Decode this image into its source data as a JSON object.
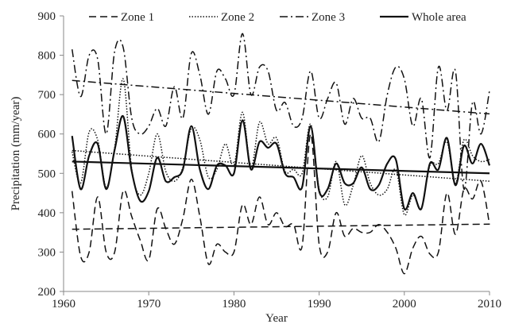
{
  "chart_data": {
    "type": "line",
    "xlabel": "Year",
    "ylabel": "Precipitation  (mm/year)",
    "xlim": [
      1960,
      2010
    ],
    "ylim": [
      200,
      900
    ],
    "xticks": [
      1960,
      1970,
      1980,
      1990,
      2000,
      2010
    ],
    "yticks": [
      200,
      300,
      400,
      500,
      600,
      700,
      800,
      900
    ],
    "legend_position": "top",
    "x": [
      1961,
      1962,
      1963,
      1964,
      1965,
      1966,
      1967,
      1968,
      1969,
      1970,
      1971,
      1972,
      1973,
      1974,
      1975,
      1976,
      1977,
      1978,
      1979,
      1980,
      1981,
      1982,
      1983,
      1984,
      1985,
      1986,
      1987,
      1988,
      1989,
      1990,
      1991,
      1992,
      1993,
      1994,
      1995,
      1996,
      1997,
      1998,
      1999,
      2000,
      2001,
      2002,
      2003,
      2004,
      2005,
      2006,
      2007,
      2008,
      2009,
      2010
    ],
    "series": [
      {
        "name": "Zone 1",
        "dash": "dashed",
        "values": [
          455,
          290,
          300,
          440,
          300,
          300,
          455,
          390,
          330,
          280,
          410,
          360,
          320,
          385,
          485,
          390,
          270,
          320,
          300,
          300,
          420,
          370,
          440,
          370,
          400,
          365,
          370,
          315,
          600,
          320,
          300,
          400,
          340,
          360,
          350,
          350,
          370,
          350,
          310,
          245,
          310,
          340,
          295,
          300,
          450,
          345,
          460,
          435,
          480,
          370
        ],
        "trend": [
          358,
          371
        ]
      },
      {
        "name": "Zone 2",
        "dash": "dotted",
        "values": [
          555,
          475,
          605,
          585,
          465,
          565,
          740,
          510,
          445,
          500,
          600,
          505,
          480,
          515,
          615,
          585,
          490,
          510,
          575,
          520,
          655,
          515,
          630,
          575,
          590,
          505,
          510,
          500,
          625,
          460,
          440,
          530,
          420,
          470,
          545,
          475,
          445,
          460,
          510,
          395,
          445,
          410,
          520,
          525,
          580,
          475,
          585,
          545,
          530,
          535
        ],
        "trend": [
          558,
          480
        ]
      },
      {
        "name": "Zone 3",
        "dash": "dashdot",
        "values": [
          815,
          695,
          800,
          790,
          600,
          810,
          820,
          640,
          600,
          620,
          665,
          620,
          720,
          640,
          805,
          750,
          650,
          760,
          740,
          700,
          855,
          700,
          770,
          760,
          660,
          680,
          620,
          640,
          760,
          640,
          690,
          730,
          625,
          690,
          640,
          640,
          580,
          700,
          770,
          740,
          620,
          690,
          540,
          770,
          660,
          760,
          460,
          680,
          600,
          710
        ],
        "trend": [
          736,
          651
        ]
      },
      {
        "name": "Whole area",
        "dash": "solid",
        "values": [
          595,
          460,
          545,
          575,
          460,
          560,
          645,
          505,
          430,
          455,
          540,
          480,
          490,
          510,
          620,
          510,
          460,
          520,
          520,
          500,
          635,
          510,
          580,
          565,
          575,
          500,
          490,
          465,
          620,
          455,
          460,
          525,
          475,
          475,
          515,
          460,
          470,
          525,
          535,
          410,
          450,
          410,
          525,
          510,
          590,
          470,
          570,
          525,
          575,
          520
        ],
        "trend": [
          530,
          500
        ]
      }
    ]
  }
}
